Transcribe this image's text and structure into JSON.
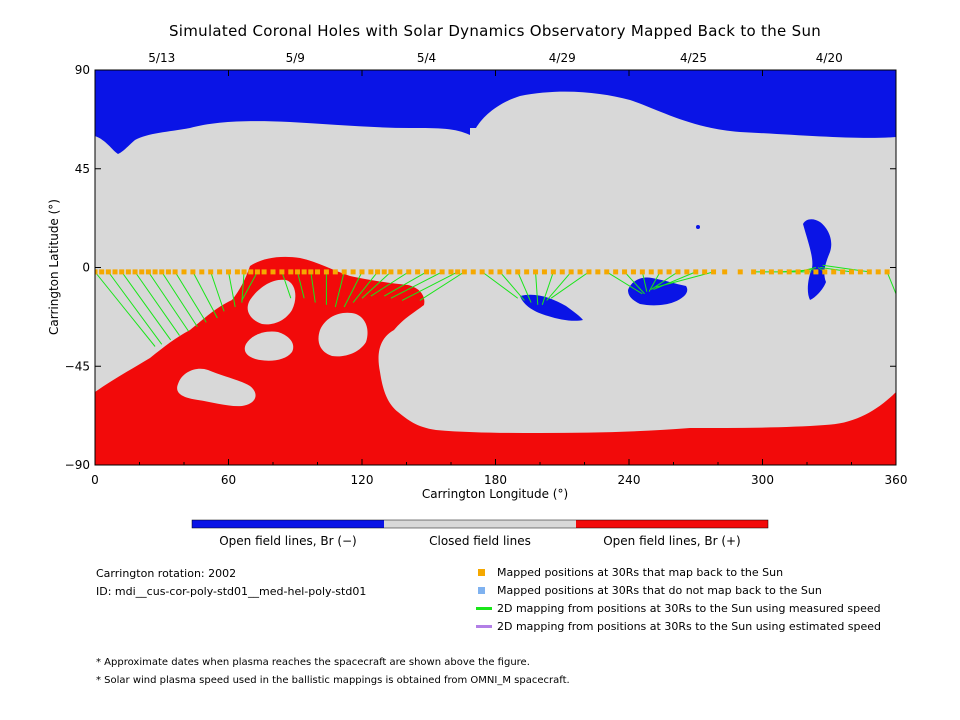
{
  "chart_data": {
    "type": "map",
    "title": "Simulated Coronal Holes with Solar Dynamics Observatory Mapped Back to the Sun",
    "xlabel": "Carrington Longitude (°)",
    "ylabel": "Carrington Latitude (°)",
    "xlim": [
      0,
      360
    ],
    "ylim": [
      -90,
      90
    ],
    "x_ticks": [
      "0",
      "60",
      "120",
      "180",
      "240",
      "300",
      "360"
    ],
    "y_ticks": [
      "90",
      "45",
      "0",
      "-45",
      "-90"
    ],
    "top_dates": [
      "5/13",
      "5/9",
      "5/4",
      "4/29",
      "4/25",
      "4/20"
    ],
    "top_date_longitudes": [
      30,
      90,
      149,
      210,
      269,
      330
    ],
    "regions": [
      {
        "label": "Open field lines, Br (−)",
        "color": "#0a14e6"
      },
      {
        "label": "Closed field lines",
        "color": "#d8d8d8"
      },
      {
        "label": "Open field lines, Br (+)",
        "color": "#f20a0a"
      }
    ],
    "mapped_points_lat": -2,
    "mapped_points_longitudes": [
      0,
      3,
      6,
      9,
      12,
      15,
      18,
      21,
      24,
      27,
      30,
      33,
      36,
      40,
      44,
      48,
      52,
      56,
      60,
      64,
      67,
      70,
      73,
      76,
      80,
      84,
      88,
      91,
      94,
      97,
      100,
      104,
      108,
      112,
      116,
      120,
      124,
      127,
      130,
      133,
      137,
      141,
      145,
      149,
      152,
      156,
      160,
      163,
      166,
      170,
      174,
      178,
      182,
      186,
      190,
      194,
      198,
      202,
      206,
      210,
      214,
      218,
      222,
      226,
      230,
      234,
      238,
      242,
      246,
      250,
      254,
      258,
      262,
      266,
      270,
      274,
      278,
      283,
      290,
      296,
      300,
      304,
      308,
      312,
      316,
      320,
      324,
      328,
      332,
      336,
      340,
      344,
      348,
      352,
      356
    ],
    "mapping_lines": [
      {
        "from_lon": 0,
        "to_lon": 27,
        "to_lat": -36
      },
      {
        "from_lon": 6,
        "to_lon": 30,
        "to_lat": -35
      },
      {
        "from_lon": 12,
        "to_lon": 34,
        "to_lat": -33
      },
      {
        "from_lon": 18,
        "to_lon": 38,
        "to_lat": -31
      },
      {
        "from_lon": 24,
        "to_lon": 42,
        "to_lat": -29
      },
      {
        "from_lon": 30,
        "to_lon": 46,
        "to_lat": -27
      },
      {
        "from_lon": 36,
        "to_lon": 50,
        "to_lat": -25
      },
      {
        "from_lon": 44,
        "to_lon": 55,
        "to_lat": -23
      },
      {
        "from_lon": 52,
        "to_lon": 58,
        "to_lat": -20
      },
      {
        "from_lon": 60,
        "to_lon": 63,
        "to_lat": -18
      },
      {
        "from_lon": 67,
        "to_lon": 66,
        "to_lat": -16
      },
      {
        "from_lon": 73,
        "to_lon": 66,
        "to_lat": -15
      },
      {
        "from_lon": 84,
        "to_lon": 88,
        "to_lat": -14
      },
      {
        "from_lon": 91,
        "to_lon": 94,
        "to_lat": -14
      },
      {
        "from_lon": 97,
        "to_lon": 99,
        "to_lat": -16
      },
      {
        "from_lon": 104,
        "to_lon": 104,
        "to_lat": -17
      },
      {
        "from_lon": 112,
        "to_lon": 108,
        "to_lat": -18
      },
      {
        "from_lon": 120,
        "to_lon": 112,
        "to_lat": -18
      },
      {
        "from_lon": 127,
        "to_lon": 116,
        "to_lat": -16
      },
      {
        "from_lon": 133,
        "to_lon": 120,
        "to_lat": -14
      },
      {
        "from_lon": 141,
        "to_lon": 124,
        "to_lat": -13
      },
      {
        "from_lon": 149,
        "to_lon": 130,
        "to_lat": -13
      },
      {
        "from_lon": 156,
        "to_lon": 133,
        "to_lat": -14
      },
      {
        "from_lon": 163,
        "to_lon": 138,
        "to_lat": -15
      },
      {
        "from_lon": 166,
        "to_lon": 146,
        "to_lat": -15
      },
      {
        "from_lon": 174,
        "to_lon": 190,
        "to_lat": -14
      },
      {
        "from_lon": 182,
        "to_lon": 193,
        "to_lat": -15
      },
      {
        "from_lon": 190,
        "to_lon": 196,
        "to_lat": -16
      },
      {
        "from_lon": 198,
        "to_lon": 199,
        "to_lat": -17
      },
      {
        "from_lon": 206,
        "to_lon": 201,
        "to_lat": -17
      },
      {
        "from_lon": 214,
        "to_lon": 203,
        "to_lat": -15
      },
      {
        "from_lon": 222,
        "to_lon": 205,
        "to_lat": -14
      },
      {
        "from_lon": 230,
        "to_lon": 246,
        "to_lat": -12
      },
      {
        "from_lon": 238,
        "to_lon": 247,
        "to_lat": -12
      },
      {
        "from_lon": 246,
        "to_lon": 248,
        "to_lat": -11
      },
      {
        "from_lon": 254,
        "to_lon": 249,
        "to_lat": -11
      },
      {
        "from_lon": 262,
        "to_lon": 250,
        "to_lat": -10
      },
      {
        "from_lon": 270,
        "to_lon": 251,
        "to_lat": -10
      },
      {
        "from_lon": 278,
        "to_lon": 252,
        "to_lat": -9
      },
      {
        "from_lon": 296,
        "to_lon": 322,
        "to_lat": -2
      },
      {
        "from_lon": 308,
        "to_lon": 323,
        "to_lat": -1
      },
      {
        "from_lon": 316,
        "to_lon": 324,
        "to_lat": 0
      },
      {
        "from_lon": 328,
        "to_lon": 325,
        "to_lat": 0
      },
      {
        "from_lon": 340,
        "to_lon": 326,
        "to_lat": 0
      },
      {
        "from_lon": 348,
        "to_lon": 327,
        "to_lat": 1
      },
      {
        "from_lon": 356,
        "to_lon": 360,
        "to_lat": -12
      }
    ],
    "legend": [
      {
        "label": "Mapped positions at 30Rs that map back to the Sun",
        "color": "#f5a800",
        "kind": "square"
      },
      {
        "label": "Mapped positions at 30Rs that do not map back to the Sun",
        "color": "#7fb2f0",
        "kind": "square"
      },
      {
        "label": "2D mapping from positions at 30Rs to the Sun using measured speed",
        "color": "#19e619",
        "kind": "line"
      },
      {
        "label": "2D mapping from positions at 30Rs to the Sun using estimated speed",
        "color": "#b27fe6",
        "kind": "line"
      }
    ]
  },
  "info": {
    "rotation": "Carrington rotation: 2002",
    "id": "ID: mdi__cus-cor-poly-std01__med-hel-poly-std01"
  },
  "notes": [
    "* Approximate dates when plasma reaches the spacecraft are shown above the figure.",
    "* Solar wind plasma speed used in the ballistic mappings is obtained from OMNI_M spacecraft."
  ]
}
